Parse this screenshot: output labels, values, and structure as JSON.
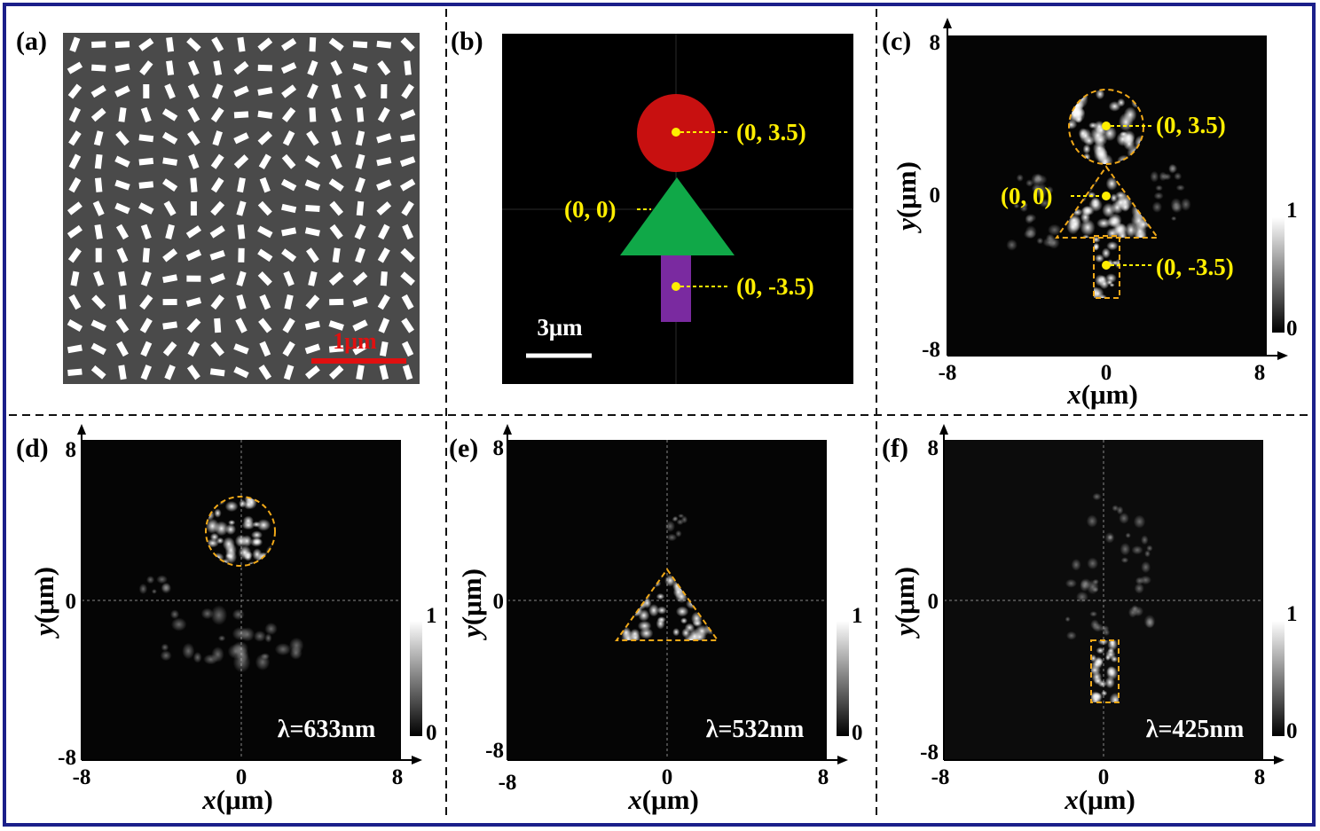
{
  "colors": {
    "frame": "#1b1f8a",
    "substrate": "#4a4a4a",
    "annotation": "#ffee00",
    "outline": "#f0a818",
    "circle": "#c81010",
    "triangle": "#10a848",
    "rect": "#7a2aa0",
    "scalebar_a": "#e01010"
  },
  "panels": {
    "a": {
      "label": "(a)",
      "scalebar": "1μm"
    },
    "b": {
      "label": "(b)",
      "scalebar": "3μm",
      "points": {
        "circle": "(0, 3.5)",
        "triangle": "(0, 0)",
        "rect": "(0, -3.5)"
      }
    },
    "c": {
      "label": "(c)",
      "points": {
        "circle": "(0, 3.5)",
        "triangle": "(0, 0)",
        "rect": "(0, -3.5)"
      },
      "colorbar": {
        "max": "1",
        "min": "0"
      }
    },
    "d": {
      "label": "(d)",
      "wavelength": "λ=633nm",
      "colorbar": {
        "max": "1",
        "min": "0"
      }
    },
    "e": {
      "label": "(e)",
      "wavelength": "λ=532nm",
      "colorbar": {
        "max": "1",
        "min": "0"
      }
    },
    "f": {
      "label": "(f)",
      "wavelength": "λ=425nm",
      "colorbar": {
        "max": "1",
        "min": "0"
      }
    }
  },
  "axes": {
    "xlabel_var": "x",
    "xlabel_unit": "(μm)",
    "ylabel_var": "y",
    "ylabel_unit": "(μm)",
    "ticks": {
      "min": "-8",
      "zero": "0",
      "max": "8"
    },
    "range": [
      -8,
      8
    ]
  }
}
